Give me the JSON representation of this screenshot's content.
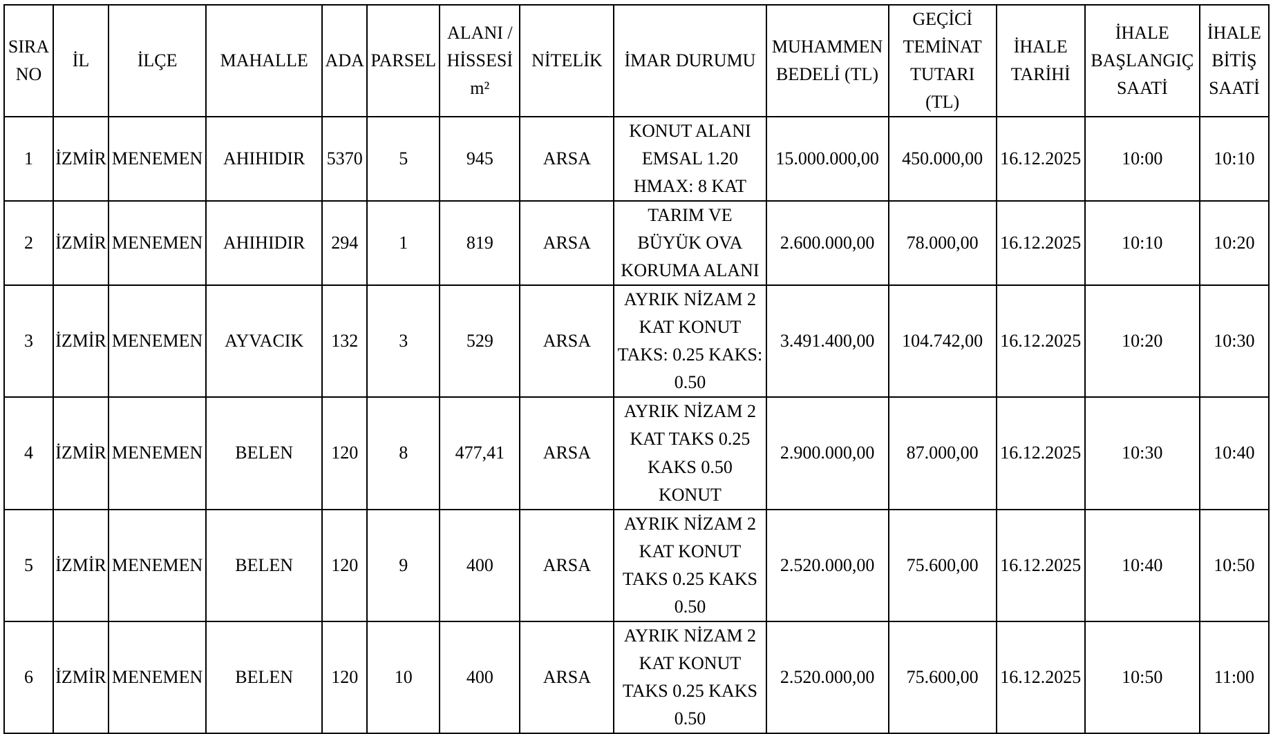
{
  "colors": {
    "background": "#ffffff",
    "text": "#000000",
    "border": "#000000"
  },
  "table": {
    "columns": [
      {
        "key": "sira_no",
        "label": "SIRA\nNO"
      },
      {
        "key": "il",
        "label": "İL"
      },
      {
        "key": "ilce",
        "label": "İLÇE"
      },
      {
        "key": "mahalle",
        "label": "MAHALLE"
      },
      {
        "key": "ada",
        "label": "ADA"
      },
      {
        "key": "parsel",
        "label": "PARSEL"
      },
      {
        "key": "alani",
        "label": "ALANI /\nHİSSESİ\nm²"
      },
      {
        "key": "nitelik",
        "label": "NİTELİK"
      },
      {
        "key": "imar",
        "label": "İMAR DURUMU"
      },
      {
        "key": "muhammen",
        "label": "MUHAMMEN\nBEDELİ (TL)"
      },
      {
        "key": "teminat",
        "label": "GEÇİCİ\nTEMİNAT\nTUTARI\n(TL)"
      },
      {
        "key": "tarih",
        "label": "İHALE\nTARİHİ"
      },
      {
        "key": "baslangic",
        "label": "İHALE\nBAŞLANGIÇ\nSAATİ"
      },
      {
        "key": "bitis",
        "label": "İHALE\nBİTİŞ\nSAATİ"
      }
    ],
    "rows": [
      {
        "sira_no": "1",
        "il": "İZMİR",
        "ilce": "MENEMEN",
        "mahalle": "AHIHIDIR",
        "ada": "5370",
        "parsel": "5",
        "alani": "945",
        "nitelik": "ARSA",
        "imar": "KONUT ALANI\nEMSAL 1.20\nHMAX: 8 KAT",
        "muhammen": "15.000.000,00",
        "teminat": "450.000,00",
        "tarih": "16.12.2025",
        "baslangic": "10:00",
        "bitis": "10:10"
      },
      {
        "sira_no": "2",
        "il": "İZMİR",
        "ilce": "MENEMEN",
        "mahalle": "AHIHIDIR",
        "ada": "294",
        "parsel": "1",
        "alani": "819",
        "nitelik": "ARSA",
        "imar": "TARIM VE\nBÜYÜK OVA\nKORUMA ALANI",
        "muhammen": "2.600.000,00",
        "teminat": "78.000,00",
        "tarih": "16.12.2025",
        "baslangic": "10:10",
        "bitis": "10:20"
      },
      {
        "sira_no": "3",
        "il": "İZMİR",
        "ilce": "MENEMEN",
        "mahalle": "AYVACIK",
        "ada": "132",
        "parsel": "3",
        "alani": "529",
        "nitelik": "ARSA",
        "imar": "AYRIK NİZAM 2\nKAT KONUT\nTAKS: 0.25 KAKS:\n0.50",
        "muhammen": "3.491.400,00",
        "teminat": "104.742,00",
        "tarih": "16.12.2025",
        "baslangic": "10:20",
        "bitis": "10:30"
      },
      {
        "sira_no": "4",
        "il": "İZMİR",
        "ilce": "MENEMEN",
        "mahalle": "BELEN",
        "ada": "120",
        "parsel": "8",
        "alani": "477,41",
        "nitelik": "ARSA",
        "imar": "AYRIK NİZAM 2\nKAT TAKS 0.25\nKAKS 0.50\nKONUT",
        "muhammen": "2.900.000,00",
        "teminat": "87.000,00",
        "tarih": "16.12.2025",
        "baslangic": "10:30",
        "bitis": "10:40"
      },
      {
        "sira_no": "5",
        "il": "İZMİR",
        "ilce": "MENEMEN",
        "mahalle": "BELEN",
        "ada": "120",
        "parsel": "9",
        "alani": "400",
        "nitelik": "ARSA",
        "imar": "AYRIK NİZAM 2\nKAT KONUT\nTAKS 0.25 KAKS\n0.50",
        "muhammen": "2.520.000,00",
        "teminat": "75.600,00",
        "tarih": "16.12.2025",
        "baslangic": "10:40",
        "bitis": "10:50"
      },
      {
        "sira_no": "6",
        "il": "İZMİR",
        "ilce": "MENEMEN",
        "mahalle": "BELEN",
        "ada": "120",
        "parsel": "10",
        "alani": "400",
        "nitelik": "ARSA",
        "imar": "AYRIK NİZAM 2\nKAT KONUT\nTAKS 0.25 KAKS\n0.50",
        "muhammen": "2.520.000,00",
        "teminat": "75.600,00",
        "tarih": "16.12.2025",
        "baslangic": "10:50",
        "bitis": "11:00"
      }
    ]
  }
}
